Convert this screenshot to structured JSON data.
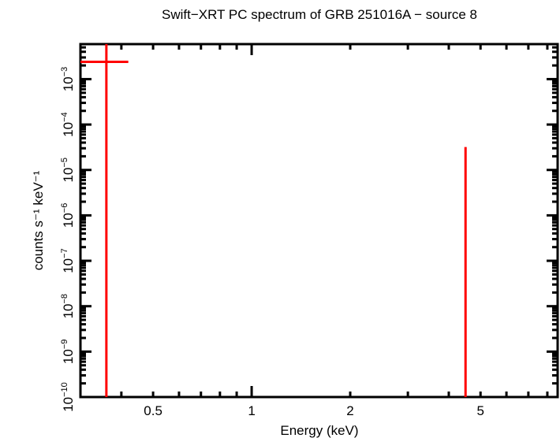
{
  "chart_data": {
    "type": "scatter",
    "title": "Swift−XRT PC spectrum of GRB 251016A − source 8",
    "xlabel": "Energy (keV)",
    "ylabel": "counts s⁻¹ keV⁻¹",
    "xscale": "log",
    "yscale": "log",
    "xlim": [
      0.3,
      8.6
    ],
    "ylim": [
      1e-10,
      0.0059
    ],
    "x_ticks": [
      "0.5",
      "1",
      "2",
      "5"
    ],
    "x_tick_values": [
      0.5,
      1,
      2,
      5
    ],
    "y_ticks": [
      "10⁻¹⁰",
      "10⁻⁹",
      "10⁻⁸",
      "10⁻⁷",
      "10⁻⁶",
      "10⁻⁵",
      "10⁻⁴",
      "10⁻³"
    ],
    "y_tick_exponents": [
      -10,
      -9,
      -8,
      -7,
      -6,
      -5,
      -4,
      -3
    ],
    "grid": false,
    "legend": null,
    "series": [
      {
        "name": "data",
        "color": "#ff0000",
        "points": [
          {
            "x": 0.36,
            "x_err_low": 0.3,
            "x_err_high": 0.42,
            "y": 0.0024,
            "y_err_low": 1e-10,
            "y_err_high": 0.0059
          },
          {
            "x": 4.5,
            "x_err_low": 4.5,
            "x_err_high": 4.5,
            "y": 3.2e-05,
            "y_err_low": 1e-10,
            "y_err_high": 3.2e-05
          }
        ]
      }
    ]
  }
}
